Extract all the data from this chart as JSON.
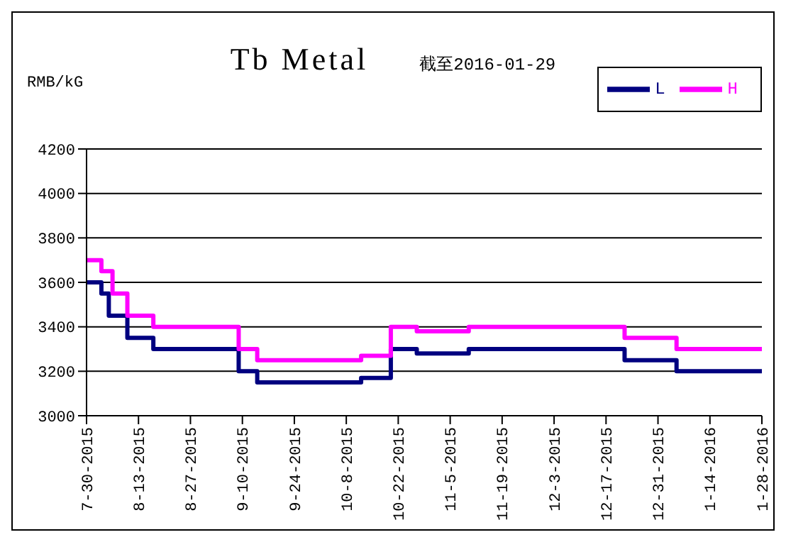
{
  "chart_data": {
    "type": "step",
    "title": "Tb Metal",
    "subtitle": "截至2016-01-29",
    "ylabel": "RMB/kG",
    "xlim": [
      "2015-07-30",
      "2016-01-28"
    ],
    "xticks": [
      {
        "value": "2015-07-30",
        "label": "7-30-2015"
      },
      {
        "value": "2015-08-13",
        "label": "8-13-2015"
      },
      {
        "value": "2015-08-27",
        "label": "8-27-2015"
      },
      {
        "value": "2015-09-10",
        "label": "9-10-2015"
      },
      {
        "value": "2015-09-24",
        "label": "9-24-2015"
      },
      {
        "value": "2015-10-08",
        "label": "10-8-2015"
      },
      {
        "value": "2015-10-22",
        "label": "10-22-2015"
      },
      {
        "value": "2015-11-05",
        "label": "11-5-2015"
      },
      {
        "value": "2015-11-19",
        "label": "11-19-2015"
      },
      {
        "value": "2015-12-03",
        "label": "12-3-2015"
      },
      {
        "value": "2015-12-17",
        "label": "12-17-2015"
      },
      {
        "value": "2015-12-31",
        "label": "12-31-2015"
      },
      {
        "value": "2016-01-14",
        "label": "1-14-2016"
      },
      {
        "value": "2016-01-28",
        "label": "1-28-2016"
      }
    ],
    "ylim": [
      3000,
      4200
    ],
    "yticks": [
      3000,
      3200,
      3400,
      3600,
      3800,
      4000,
      4200
    ],
    "grid": "y",
    "legend": "top right",
    "marker": "none",
    "line_style": "solid",
    "series": [
      {
        "name": "L",
        "color": "#000080",
        "x": [
          "2015-07-30",
          "2015-08-03",
          "2015-08-05",
          "2015-08-10",
          "2015-08-17",
          "2015-09-09",
          "2015-09-14",
          "2015-10-12",
          "2015-10-20",
          "2015-10-27",
          "2015-11-10",
          "2015-12-22",
          "2016-01-05",
          "2016-01-28"
        ],
        "values": [
          3600,
          3550,
          3450,
          3350,
          3300,
          3200,
          3150,
          3170,
          3300,
          3280,
          3300,
          3250,
          3200,
          3200
        ]
      },
      {
        "name": "H",
        "color": "#ff00ff",
        "x": [
          "2015-07-30",
          "2015-08-03",
          "2015-08-06",
          "2015-08-10",
          "2015-08-17",
          "2015-09-09",
          "2015-09-14",
          "2015-10-12",
          "2015-10-20",
          "2015-10-27",
          "2015-11-10",
          "2015-12-22",
          "2016-01-05",
          "2016-01-28"
        ],
        "values": [
          3700,
          3650,
          3550,
          3450,
          3400,
          3300,
          3250,
          3270,
          3400,
          3380,
          3400,
          3350,
          3300,
          3300
        ]
      }
    ]
  }
}
